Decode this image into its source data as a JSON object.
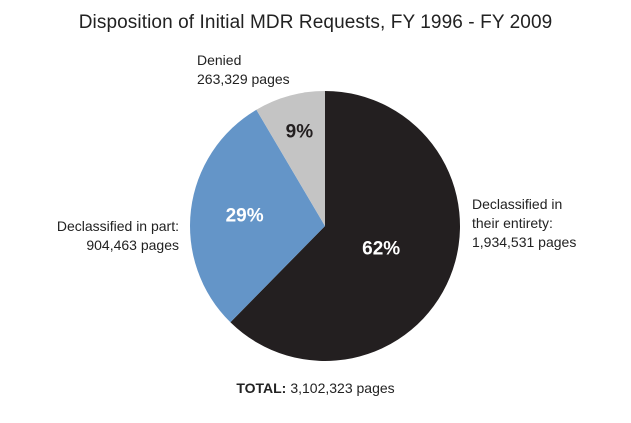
{
  "chart_data": {
    "type": "pie",
    "title": "Disposition of Initial MDR Requests, FY 1996 - FY 2009",
    "slices": [
      {
        "key": "entirety",
        "label_lines": [
          "Declassified in",
          "their entirety:",
          "1,934,531 pages"
        ],
        "pages": 1934531,
        "percent_label": "62%",
        "color": "#231f20",
        "text_color": "#ffffff"
      },
      {
        "key": "part",
        "label_lines": [
          "Declassified in part:",
          "904,463 pages"
        ],
        "pages": 904463,
        "percent_label": "29%",
        "color": "#6495c8",
        "text_color": "#ffffff"
      },
      {
        "key": "denied",
        "label_lines": [
          "Denied",
          "263,329 pages"
        ],
        "pages": 263329,
        "percent_label": "9%",
        "color": "#c4c4c4",
        "text_color": "#231f20"
      }
    ],
    "total_label": "TOTAL:",
    "total_value": "3,102,323 pages",
    "start_angle": "12 o'clock",
    "direction": "clockwise"
  }
}
